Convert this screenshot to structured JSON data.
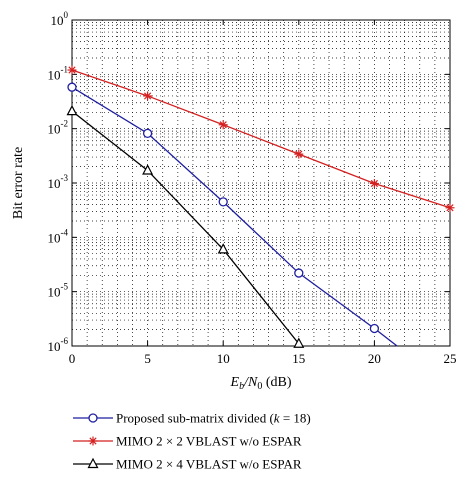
{
  "chart_data": {
    "type": "line",
    "xlabel": {
      "main": "E",
      "sub1": "b",
      "mid": "/N",
      "sub2": "0",
      "unit": " (dB)"
    },
    "ylabel": "Bit error rate",
    "xlim": [
      0,
      25
    ],
    "ylim": [
      1e-06,
      1
    ],
    "y_scale": "log",
    "grid": true,
    "x_ticks": [
      0,
      5,
      10,
      15,
      20,
      25
    ],
    "y_ticks": [
      {
        "base": "10",
        "exp": "0",
        "value": 1
      },
      {
        "base": "10",
        "exp": "-1",
        "value": 0.1
      },
      {
        "base": "10",
        "exp": "-2",
        "value": 0.01
      },
      {
        "base": "10",
        "exp": "-3",
        "value": 0.001
      },
      {
        "base": "10",
        "exp": "-4",
        "value": 0.0001
      },
      {
        "base": "10",
        "exp": "-5",
        "value": 1e-05
      },
      {
        "base": "10",
        "exp": "-6",
        "value": 1e-06
      }
    ],
    "legend_position": "below",
    "series": [
      {
        "name": "Proposed sub-matrix divided (k = 18)",
        "legend_parts": [
          "Proposed sub-matrix divided (",
          "k",
          " = 18)"
        ],
        "color": "#1f1fa0",
        "marker": "circle",
        "x": [
          0,
          5,
          10,
          15,
          20,
          21.5
        ],
        "y": [
          0.058,
          0.0082,
          0.00045,
          2.2e-05,
          2.1e-06,
          1e-06
        ],
        "marked": [
          true,
          true,
          true,
          true,
          true,
          false
        ]
      },
      {
        "name": "MIMO 2 × 2 VBLAST w/o ESPAR",
        "legend_parts": [
          "MIMO 2 × 2 VBLAST w/o ESPAR"
        ],
        "color": "#d42020",
        "marker": "asterisk",
        "x": [
          0,
          5,
          10,
          15,
          20,
          25
        ],
        "y": [
          0.12,
          0.04,
          0.0118,
          0.0034,
          0.00098,
          0.00035
        ],
        "marked": [
          true,
          true,
          true,
          true,
          true,
          true
        ]
      },
      {
        "name": "MIMO 2 × 4 VBLAST w/o ESPAR",
        "legend_parts": [
          "MIMO 2 × 4 VBLAST w/o ESPAR"
        ],
        "color": "#000000",
        "marker": "triangle",
        "x": [
          0,
          5,
          10,
          15
        ],
        "y": [
          0.021,
          0.0017,
          6e-05,
          1.1e-06
        ],
        "marked": [
          true,
          true,
          true,
          true
        ]
      }
    ]
  }
}
